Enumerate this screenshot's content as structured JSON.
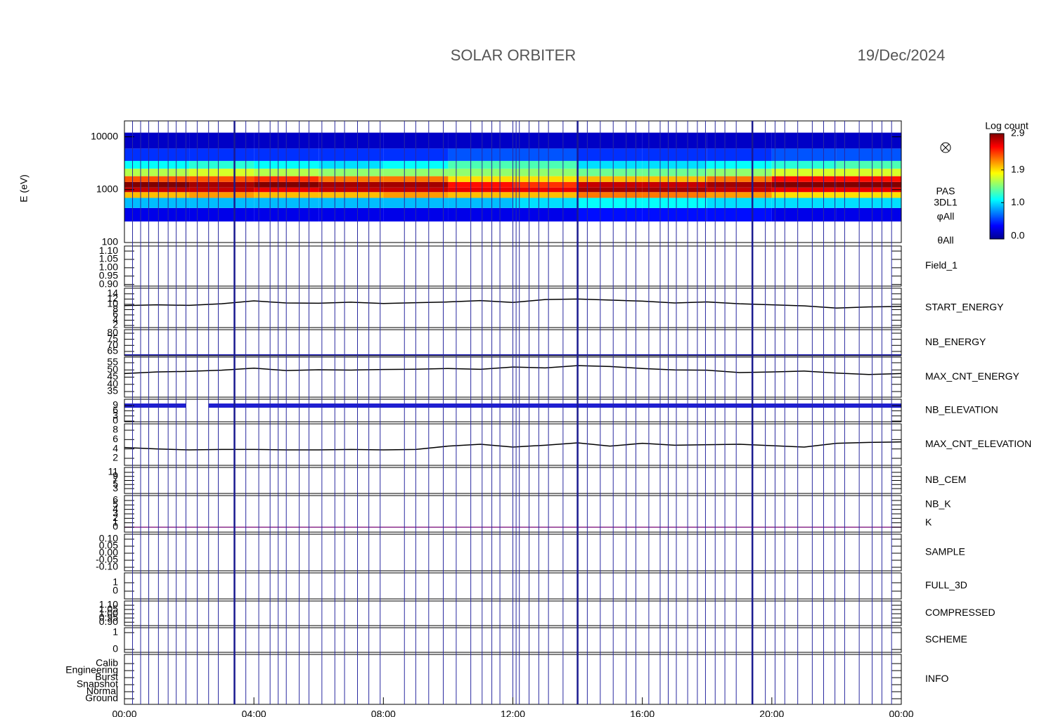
{
  "chart_data": [
    {
      "type": "heatmap",
      "title": "SOLAR ORBITER",
      "date": "19/Dec/2024",
      "ylabel": "E (eV)",
      "labels": [
        {
          "text": "PAS",
          "color": "#000000"
        },
        {
          "text": "3DL1",
          "color": "#000000"
        },
        {
          "text": "φAll",
          "color": "#000000"
        },
        {
          "text": "θAll",
          "color": "#000000"
        }
      ],
      "colorbar_label": "Log count",
      "clim": [
        0,
        2.9
      ],
      "cticks": [
        {
          "value": 0,
          "label": "0.0"
        },
        {
          "value": 1,
          "label": "1.0"
        },
        1.9,
        2.9
      ],
      "log": true,
      "ylim": [
        100,
        20000
      ],
      "yticks": [
        100,
        1000,
        10000
      ],
      "xlim": [
        0,
        24
      ],
      "x_edges": [
        0,
        2,
        4,
        6,
        8,
        10,
        12,
        14,
        16,
        18,
        20,
        22,
        24
      ],
      "y_edges": [
        250,
        450,
        700,
        900,
        1100,
        1400,
        1800,
        2500,
        3500,
        6000,
        12000
      ],
      "values": [
        [
          0.3,
          0.9,
          2.0,
          2.7,
          2.9,
          2.3,
          1.6,
          1.1,
          0.5,
          0.2
        ],
        [
          0.3,
          0.9,
          2.1,
          2.7,
          2.8,
          2.3,
          1.7,
          1.2,
          0.5,
          0.2
        ],
        [
          0.3,
          0.9,
          2.0,
          2.6,
          2.9,
          2.4,
          1.6,
          1.1,
          0.5,
          0.2
        ],
        [
          0.3,
          0.9,
          2.0,
          2.7,
          2.8,
          2.2,
          1.5,
          1.0,
          0.5,
          0.2
        ],
        [
          0.3,
          0.9,
          2.1,
          2.7,
          2.8,
          2.2,
          1.5,
          1.1,
          0.5,
          0.2
        ],
        [
          0.3,
          0.9,
          2.0,
          2.6,
          2.5,
          1.9,
          1.5,
          1.3,
          0.6,
          0.2
        ],
        [
          0.3,
          1.0,
          2.0,
          2.6,
          2.4,
          1.9,
          1.5,
          1.3,
          0.6,
          0.2
        ],
        [
          0.4,
          1.1,
          2.2,
          2.8,
          2.7,
          2.0,
          1.4,
          1.0,
          0.5,
          0.2
        ],
        [
          0.4,
          1.1,
          2.2,
          2.8,
          2.7,
          2.0,
          1.4,
          1.0,
          0.5,
          0.2
        ],
        [
          0.4,
          1.0,
          2.1,
          2.7,
          2.8,
          2.2,
          1.5,
          1.1,
          0.5,
          0.2
        ],
        [
          0.3,
          1.0,
          1.9,
          2.6,
          2.9,
          2.5,
          1.7,
          1.2,
          0.6,
          0.2
        ],
        [
          0.3,
          1.0,
          1.9,
          2.6,
          2.9,
          2.5,
          1.7,
          1.3,
          0.6,
          0.2
        ]
      ],
      "events": [
        0.25,
        0.5,
        0.75,
        1.05,
        1.35,
        1.6,
        1.9,
        2.25,
        2.6,
        2.9,
        3.4,
        3.75,
        4.15,
        4.5,
        4.75,
        5.0,
        5.4,
        5.7,
        6.1,
        6.5,
        6.8,
        7.2,
        7.55,
        7.9,
        8.65,
        9.0,
        9.4,
        9.85,
        10.25,
        10.7,
        11.05,
        11.35,
        11.6,
        12.0,
        12.1,
        12.2,
        12.5,
        12.8,
        13.1,
        13.55,
        14.0,
        14.3,
        14.7,
        15.1,
        15.5,
        15.8,
        16.2,
        16.55,
        16.8,
        17.05,
        17.4,
        17.7,
        17.95,
        18.25,
        18.55,
        18.9,
        19.4,
        19.8,
        20.1,
        20.4,
        20.8,
        21.25,
        21.6,
        21.95,
        22.25,
        22.7,
        23.1,
        23.4,
        23.7
      ],
      "major_events": [
        3.4,
        14.0,
        19.4
      ]
    },
    {
      "type": "empty",
      "labels": [
        {
          "text": "Field_1",
          "color": "#2424b8"
        }
      ],
      "ylim": [
        0.89,
        1.13
      ],
      "yticks": [
        {
          "value": 0.9,
          "label": "0.90"
        },
        0.95,
        {
          "value": 1,
          "label": "1.00"
        },
        1.05,
        {
          "value": 1.1,
          "label": "1.10"
        }
      ]
    },
    {
      "type": "line",
      "labels": [
        {
          "text": "START_ENERGY",
          "color": "#000000"
        }
      ],
      "ylim": [
        1.2,
        16.1
      ],
      "yticks": [
        2,
        4,
        6,
        8,
        10,
        12,
        14
      ],
      "color": "#000000",
      "x": [
        0,
        1,
        2,
        3,
        4,
        5,
        6,
        7,
        8,
        9,
        10,
        11,
        12,
        13,
        14,
        15,
        16,
        17,
        18,
        19,
        20,
        21,
        22,
        23,
        24
      ],
      "values": [
        9.5,
        9.8,
        9.6,
        10.2,
        11.3,
        10.5,
        10.4,
        10.8,
        10.3,
        10.6,
        10.9,
        11.4,
        10.7,
        11.8,
        12.0,
        11.6,
        11.2,
        10.5,
        10.9,
        10.2,
        9.8,
        9.4,
        8.6,
        9.0,
        9.2
      ]
    },
    {
      "type": "line",
      "labels": [
        {
          "text": "NB_ENERGY",
          "color": "#2424b8"
        }
      ],
      "ylim": [
        61.5,
        82.9
      ],
      "yticks": [
        65,
        70,
        75,
        80
      ],
      "color": "#2424b8",
      "x": [
        0,
        24
      ],
      "values": [
        62.2,
        62.2
      ]
    },
    {
      "type": "line",
      "labels": [
        {
          "text": "MAX_CNT_ENERGY",
          "color": "#000000"
        }
      ],
      "ylim": [
        31.1,
        58.9
      ],
      "yticks": [
        35,
        40,
        45,
        50,
        55
      ],
      "color": "#000000",
      "x": [
        0,
        1,
        2,
        3,
        4,
        5,
        6,
        7,
        8,
        9,
        10,
        11,
        12,
        13,
        14,
        15,
        16,
        17,
        18,
        19,
        20,
        21,
        22,
        23,
        24
      ],
      "values": [
        47.5,
        48.6,
        49.0,
        49.8,
        51.2,
        49.6,
        50.1,
        49.9,
        50.3,
        50.5,
        51.0,
        50.4,
        52.0,
        51.4,
        53.0,
        52.4,
        51.0,
        50.0,
        49.8,
        48.2,
        48.6,
        49.2,
        47.8,
        46.8,
        47.5
      ]
    },
    {
      "type": "band",
      "labels": [
        {
          "text": "NB_ELEVATION",
          "color": "#2424b8"
        }
      ],
      "ylim": [
        -0.4,
        12.7
      ],
      "yticks": [
        0,
        3,
        6,
        9
      ],
      "color": "#1f1fd0",
      "x": [
        0,
        1.9,
        2.3,
        2.6,
        24
      ],
      "values": [
        9,
        9,
        null,
        9,
        9
      ]
    },
    {
      "type": "line",
      "labels": [
        {
          "text": "MAX_CNT_ELEVATION",
          "color": "#000000"
        }
      ],
      "ylim": [
        0.5,
        9.35
      ],
      "yticks": [
        2,
        4,
        6,
        8
      ],
      "color": "#000000",
      "x": [
        0,
        1,
        2,
        3,
        4,
        5,
        6,
        7,
        8,
        9,
        10,
        11,
        12,
        13,
        14,
        15,
        16,
        17,
        18,
        19,
        20,
        21,
        22,
        23,
        24
      ],
      "values": [
        4.3,
        4.0,
        3.8,
        3.9,
        3.9,
        3.8,
        3.8,
        3.9,
        3.8,
        3.9,
        4.6,
        5.0,
        4.4,
        4.8,
        5.3,
        4.6,
        5.2,
        4.8,
        4.9,
        5.0,
        4.7,
        4.4,
        5.2,
        5.4,
        5.5
      ]
    },
    {
      "type": "empty",
      "labels": [
        {
          "text": "NB_CEM",
          "color": "#2424b8"
        }
      ],
      "ylim": [
        0.6,
        13.4
      ],
      "yticks": [
        3,
        5,
        7,
        9,
        11
      ]
    },
    {
      "type": "line",
      "labels": [
        {
          "text": "NB_K",
          "color": "#d02020"
        },
        {
          "text": "K",
          "color": "#2424b8"
        }
      ],
      "ylim": [
        -1.1,
        7.1
      ],
      "yticks": [
        0,
        1,
        2,
        3,
        4,
        5,
        6
      ],
      "color": "#8a2c8a",
      "x": [
        0,
        24
      ],
      "values": [
        0,
        0
      ]
    },
    {
      "type": "empty",
      "labels": [
        {
          "text": "SAMPLE",
          "color": "#2424b8"
        }
      ],
      "ylim": [
        -0.125,
        0.135
      ],
      "yticks": [
        {
          "value": -0.1,
          "label": "-0.10"
        },
        -0.05,
        {
          "value": 0,
          "label": "0.00"
        },
        0.05,
        {
          "value": 0.1,
          "label": "0.10"
        }
      ]
    },
    {
      "type": "empty",
      "labels": [
        {
          "text": "FULL_3D",
          "color": "#2424b8"
        }
      ],
      "ylim": [
        -0.92,
        2.17
      ],
      "yticks": [
        0,
        1
      ]
    },
    {
      "type": "empty",
      "labels": [
        {
          "text": "COMPRESSED",
          "color": "#000000"
        }
      ],
      "ylim": [
        0.86,
        1.15
      ],
      "yticks": [
        {
          "value": 0.9,
          "label": "0.90"
        },
        0.95,
        {
          "value": 1,
          "label": "1.00"
        },
        1.05,
        {
          "value": 1.1,
          "label": "1.10"
        }
      ]
    },
    {
      "type": "empty",
      "labels": [
        {
          "text": "SCHEME",
          "color": "#000000"
        }
      ],
      "ylim": [
        -0.17,
        1.29
      ],
      "yticks": [
        0,
        1
      ]
    },
    {
      "type": "empty",
      "labels": [
        {
          "text": "INFO",
          "color": "#000000"
        }
      ],
      "ylim": [
        -0.8,
        6.3
      ],
      "yticks": [
        {
          "value": 0,
          "label": "Ground"
        },
        {
          "value": 1,
          "label": "Normal"
        },
        {
          "value": 2,
          "label": "Snapshot"
        },
        {
          "value": 3,
          "label": "Burst"
        },
        {
          "value": 4,
          "label": "Engineering"
        },
        {
          "value": 5,
          "label": "Calib"
        }
      ],
      "xlim": [
        0,
        24
      ],
      "xticks": [
        {
          "value": 0,
          "label": "00:00"
        },
        {
          "value": 4,
          "label": "04:00"
        },
        {
          "value": 8,
          "label": "08:00"
        },
        {
          "value": 12,
          "label": "12:00"
        },
        {
          "value": 16,
          "label": "16:00"
        },
        {
          "value": 20,
          "label": "20:00"
        },
        {
          "value": 24,
          "label": "00:00"
        }
      ]
    }
  ]
}
